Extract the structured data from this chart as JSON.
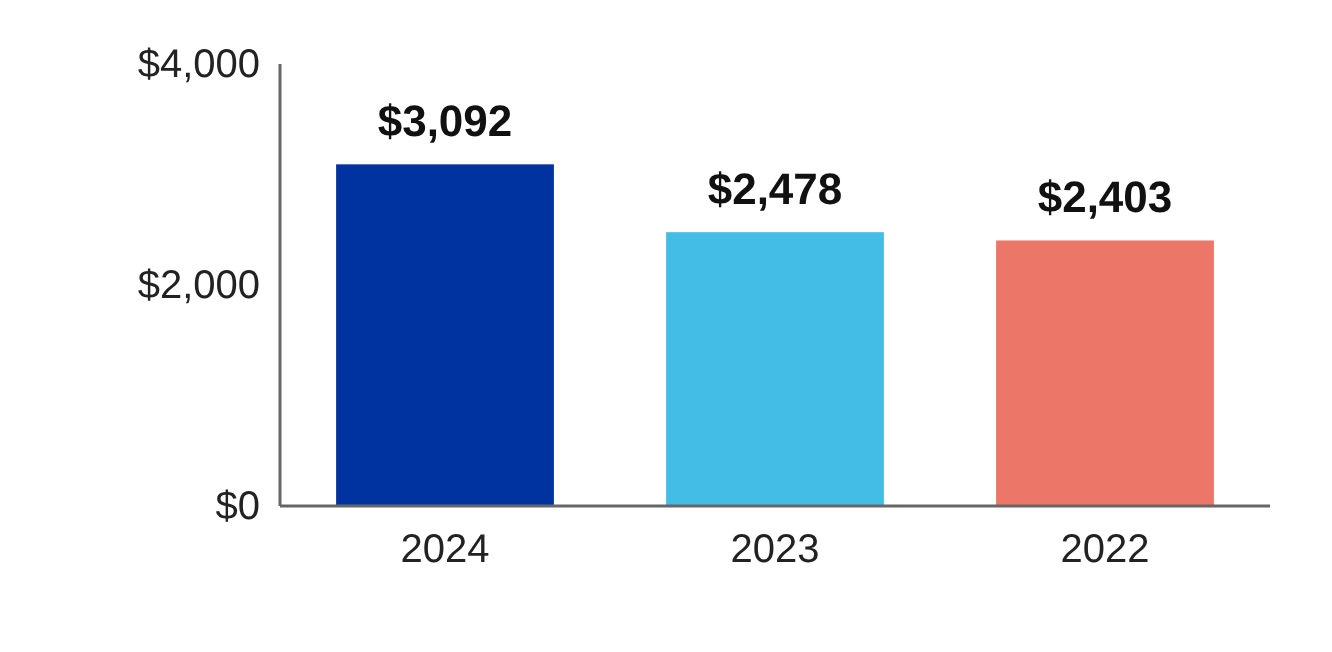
{
  "chart_data": {
    "type": "bar",
    "categories": [
      "2024",
      "2023",
      "2022"
    ],
    "values": [
      3092,
      2478,
      2403
    ],
    "colors": [
      "#0033a0",
      "#44bde6",
      "#ec7667"
    ],
    "value_labels": [
      "$3,092",
      "$2,478",
      "$2,403"
    ],
    "ylim": [
      0,
      4000
    ],
    "yticks": [
      {
        "value": 0,
        "label": "$0"
      },
      {
        "value": 2000,
        "label": "$2,000"
      },
      {
        "value": 4000,
        "label": "$4,000"
      }
    ],
    "grid": false
  }
}
